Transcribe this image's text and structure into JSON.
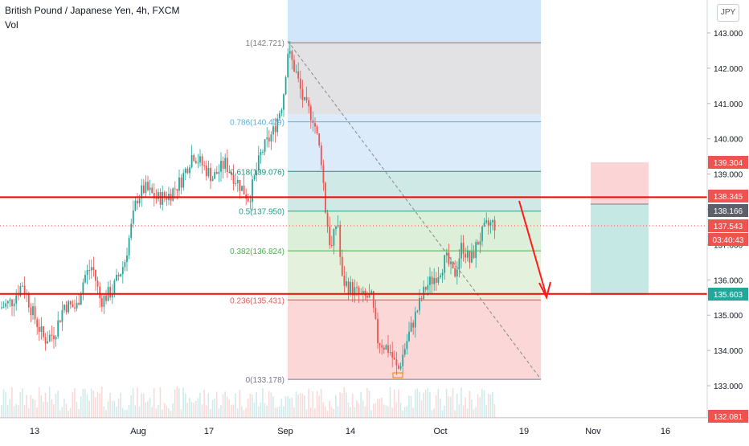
{
  "header": {
    "symbol_title": "British Pound / Japanese Yen, 4h, FXCM",
    "volume_label": "Vol",
    "currency_button": "JPY"
  },
  "price_axis": {
    "ticks": [
      "143.000",
      "142.000",
      "141.000",
      "140.000",
      "139.000",
      "138.000",
      "137.000",
      "136.000",
      "135.000",
      "134.000",
      "133.000"
    ],
    "badges": [
      {
        "label": "139.304",
        "color": "#ef5350"
      },
      {
        "label": "138.345",
        "color": "#ef5350"
      },
      {
        "label": "138.166",
        "color": "#5d606b"
      },
      {
        "label": "137.543",
        "color": "#ef5350"
      },
      {
        "label": "03:40:43",
        "color": "#ef5350"
      },
      {
        "label": "135.603",
        "color": "#26a69a"
      },
      {
        "label": "132.081",
        "color": "#ef5350"
      }
    ]
  },
  "time_axis": {
    "ticks": [
      "13",
      "Aug",
      "17",
      "Sep",
      "14",
      "Oct",
      "19",
      "Nov",
      "16"
    ]
  },
  "fibonacci": {
    "levels": [
      {
        "label": "1(142.721)",
        "value": 142.721,
        "color": "#787b86"
      },
      {
        "label": "0.786(140.479)",
        "value": 140.479,
        "color": "#5aaedc"
      },
      {
        "label": "0.618(139.076)",
        "value": 139.076,
        "color": "#1b8f7b"
      },
      {
        "label": "0.5(137.950)",
        "value": 137.95,
        "color": "#2b9a8c"
      },
      {
        "label": "0.382(136.824)",
        "value": 136.824,
        "color": "#4caf50"
      },
      {
        "label": "0.236(135.431)",
        "value": 135.431,
        "color": "#e05a5a"
      },
      {
        "label": "0(133.178)",
        "value": 133.178,
        "color": "#787b86"
      }
    ]
  },
  "horizontal_lines": [
    {
      "value": 138.345,
      "color": "#ff0000"
    },
    {
      "value": 135.603,
      "color": "#ff0000"
    },
    {
      "value": 132.081,
      "color": "#ff0000"
    }
  ],
  "position_tool": {
    "stop_price": 139.304,
    "entry_price": 138.166,
    "target_price": 135.603
  },
  "chart_data": {
    "type": "candlestick",
    "symbol": "GBPJPY",
    "timeframe": "4h",
    "y_range": [
      132.0,
      143.5
    ],
    "last_price": 137.543,
    "anchors": [
      [
        0,
        135.2
      ],
      [
        15,
        135.4
      ],
      [
        28,
        135.9
      ],
      [
        40,
        135.1
      ],
      [
        55,
        134.3
      ],
      [
        68,
        134.5
      ],
      [
        80,
        135.3
      ],
      [
        95,
        135.2
      ],
      [
        105,
        136.1
      ],
      [
        115,
        136.4
      ],
      [
        125,
        135.4
      ],
      [
        140,
        135.7
      ],
      [
        155,
        136.5
      ],
      [
        170,
        138.3
      ],
      [
        180,
        138.6
      ],
      [
        195,
        138.3
      ],
      [
        210,
        138.4
      ],
      [
        225,
        138.8
      ],
      [
        240,
        139.6
      ],
      [
        250,
        139.3
      ],
      [
        265,
        138.9
      ],
      [
        280,
        139.3
      ],
      [
        295,
        138.8
      ],
      [
        310,
        138.3
      ],
      [
        325,
        139.6
      ],
      [
        340,
        140.2
      ],
      [
        352,
        141.1
      ],
      [
        358,
        142.5
      ],
      [
        368,
        141.9
      ],
      [
        378,
        141.0
      ],
      [
        390,
        140.6
      ],
      [
        400,
        139.4
      ],
      [
        405,
        138.0
      ],
      [
        412,
        136.8
      ],
      [
        420,
        137.8
      ],
      [
        425,
        136.0
      ],
      [
        435,
        135.8
      ],
      [
        450,
        135.5
      ],
      [
        462,
        135.5
      ],
      [
        470,
        134.3
      ],
      [
        485,
        134.0
      ],
      [
        495,
        133.4
      ],
      [
        508,
        134.4
      ],
      [
        520,
        135.2
      ],
      [
        530,
        135.8
      ],
      [
        545,
        136.2
      ],
      [
        555,
        136.6
      ],
      [
        565,
        136.1
      ],
      [
        575,
        137.0
      ],
      [
        585,
        136.5
      ],
      [
        595,
        137.1
      ],
      [
        605,
        137.5
      ],
      [
        612,
        137.6
      ],
      [
        618,
        137.54
      ]
    ]
  }
}
